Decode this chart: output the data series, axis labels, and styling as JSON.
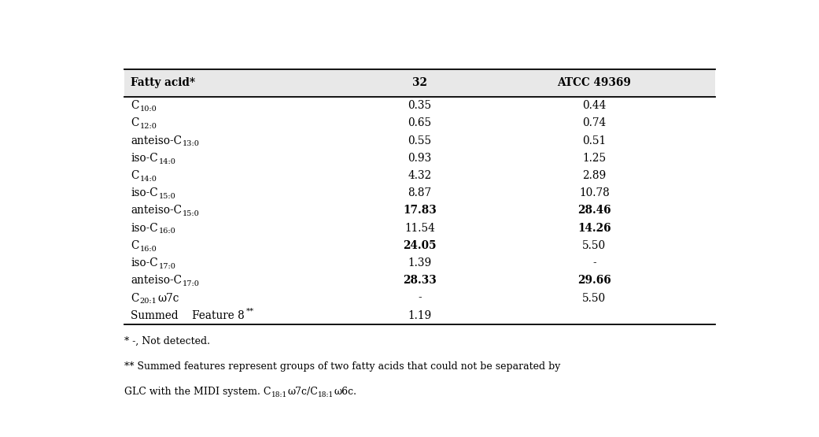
{
  "headers": [
    "Fatty acid*",
    "32",
    "ATCC 49369"
  ],
  "rows": [
    {
      "label": "C",
      "sub": "10:0",
      "prefix": "",
      "suffix": "",
      "val1": "0.35",
      "val2": "0.44",
      "bold1": false,
      "bold2": false
    },
    {
      "label": "C",
      "sub": "12:0",
      "prefix": "",
      "suffix": "",
      "val1": "0.65",
      "val2": "0.74",
      "bold1": false,
      "bold2": false
    },
    {
      "label": "C",
      "sub": "13:0",
      "prefix": "anteiso-",
      "suffix": "",
      "val1": "0.55",
      "val2": "0.51",
      "bold1": false,
      "bold2": false
    },
    {
      "label": "C",
      "sub": "14:0",
      "prefix": "iso-",
      "suffix": "",
      "val1": "0.93",
      "val2": "1.25",
      "bold1": false,
      "bold2": false
    },
    {
      "label": "C",
      "sub": "14:0",
      "prefix": "",
      "suffix": "",
      "val1": "4.32",
      "val2": "2.89",
      "bold1": false,
      "bold2": false
    },
    {
      "label": "C",
      "sub": "15:0",
      "prefix": "iso-",
      "suffix": "",
      "val1": "8.87",
      "val2": "10.78",
      "bold1": false,
      "bold2": false
    },
    {
      "label": "C",
      "sub": "15:0",
      "prefix": "anteiso-",
      "suffix": "",
      "val1": "17.83",
      "val2": "28.46",
      "bold1": true,
      "bold2": true
    },
    {
      "label": "C",
      "sub": "16:0",
      "prefix": "iso-",
      "suffix": "",
      "val1": "11.54",
      "val2": "14.26",
      "bold1": false,
      "bold2": true
    },
    {
      "label": "C",
      "sub": "16:0",
      "prefix": "",
      "suffix": "",
      "val1": "24.05",
      "val2": "5.50",
      "bold1": true,
      "bold2": false
    },
    {
      "label": "C",
      "sub": "17:0",
      "prefix": "iso-",
      "suffix": "",
      "val1": "1.39",
      "val2": "-",
      "bold1": false,
      "bold2": false
    },
    {
      "label": "C",
      "sub": "17:0",
      "prefix": "anteiso-",
      "suffix": "",
      "val1": "28.33",
      "val2": "29.66",
      "bold1": true,
      "bold2": true
    },
    {
      "label": "C",
      "sub": "20:1",
      "prefix": "",
      "suffix": "ω7c",
      "val1": "-",
      "val2": "5.50",
      "bold1": false,
      "bold2": false
    },
    {
      "label": "summed",
      "sub": "8",
      "prefix": "",
      "suffix": "",
      "val1": "1.19",
      "val2": "",
      "bold1": false,
      "bold2": false
    }
  ],
  "footnote1": "* -, Not detected.",
  "footnote2": "** Summed features represent groups of two fatty acids that could not be separated by",
  "footnote3_pre": "GLC with the MIDI system. C",
  "footnote3_sub1": "18:1",
  "footnote3_mid": "ω7c/C",
  "footnote3_sub2": "18:1",
  "footnote3_end": "ω6c.",
  "bg_color": "#ffffff",
  "header_bg": "#e8e8e8",
  "line_color": "#000000"
}
